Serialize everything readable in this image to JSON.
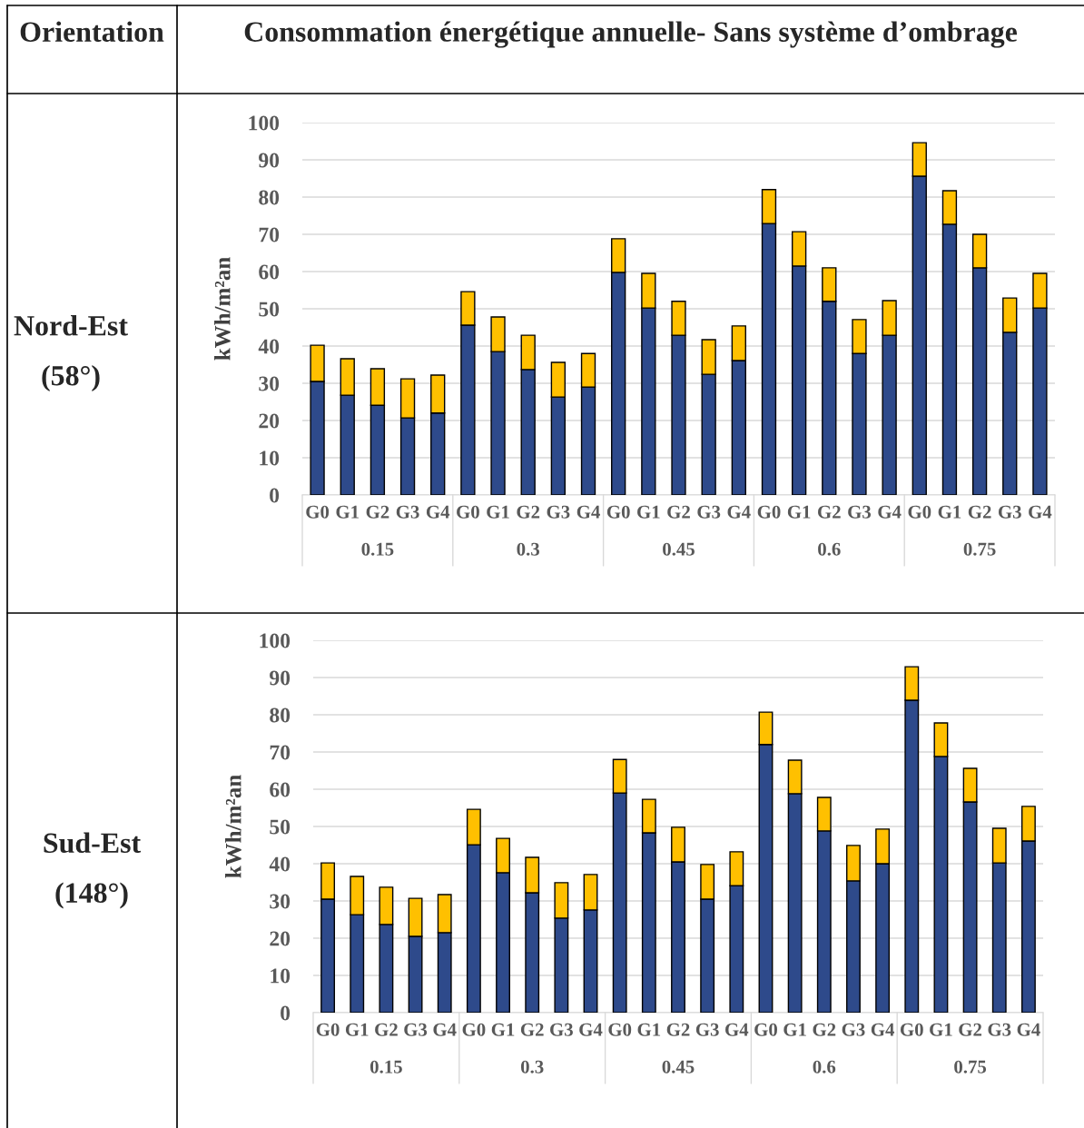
{
  "chart_data": [
    {
      "type": "bar",
      "title": "Consommation énergétique annuelle- Sans système d’ombrage",
      "ylabel": "kWh/m²an",
      "stacked": true,
      "grid": "y",
      "ylim": [
        0,
        100
      ],
      "yticks": [
        0,
        10,
        20,
        30,
        40,
        50,
        60,
        70,
        80,
        90,
        100
      ],
      "categories": [
        "G0",
        "G1",
        "G2",
        "G3",
        "G4",
        "G0",
        "G1",
        "G2",
        "G3",
        "G4",
        "G0",
        "G1",
        "G2",
        "G3",
        "G4",
        "G0",
        "G1",
        "G2",
        "G3",
        "G4",
        "G0",
        "G1",
        "G2",
        "G3",
        "G4"
      ],
      "series": [
        {
          "color": "#2e4a8b",
          "values": [
            30.5,
            26.8,
            24.1,
            20.7,
            22,
            45.6,
            38.5,
            33.7,
            26.3,
            29,
            59.8,
            50.2,
            42.9,
            32.4,
            36.1,
            72.9,
            61.5,
            52,
            38,
            42.9,
            85.6,
            72.7,
            61,
            43.7,
            50.2
          ]
        },
        {
          "color": "#ffc000",
          "values": [
            9.7,
            9.8,
            9.8,
            10.5,
            10.2,
            9,
            9.3,
            9.2,
            9.3,
            9,
            9,
            9.3,
            9.1,
            9.3,
            9.3,
            9.1,
            9.2,
            9,
            9.1,
            9.3,
            9,
            9,
            9,
            9.2,
            9.3
          ]
        }
      ],
      "annotations": [
        "Orientation",
        "Nord-Est",
        "(58°)",
        "0.15",
        "0.3",
        "0.45",
        "0.6",
        "0.75"
      ]
    },
    {
      "type": "bar",
      "ylabel": "kWh/m²an",
      "stacked": true,
      "grid": "y",
      "ylim": [
        0,
        100
      ],
      "yticks": [
        0,
        10,
        20,
        30,
        40,
        50,
        60,
        70,
        80,
        90,
        100
      ],
      "categories": [
        "G0",
        "G1",
        "G2",
        "G3",
        "G4",
        "G0",
        "G1",
        "G2",
        "G3",
        "G4",
        "G0",
        "G1",
        "G2",
        "G3",
        "G4",
        "G0",
        "G1",
        "G2",
        "G3",
        "G4",
        "G0",
        "G1",
        "G2",
        "G3",
        "G4"
      ],
      "series": [
        {
          "color": "#2e4a8b",
          "values": [
            30.5,
            26.3,
            23.7,
            20.5,
            21.5,
            45.1,
            37.6,
            32.2,
            25.4,
            27.6,
            59,
            48.3,
            40.5,
            30.5,
            34.1,
            72,
            58.8,
            48.8,
            35.4,
            40,
            83.9,
            68.8,
            56.6,
            40.2,
            46.1
          ]
        },
        {
          "color": "#ffc000",
          "values": [
            9.7,
            10.3,
            10,
            10.2,
            10.2,
            9.5,
            9.2,
            9.5,
            9.5,
            9.5,
            9,
            9,
            9.3,
            9.3,
            9.1,
            8.7,
            9,
            9,
            9.5,
            9.3,
            9,
            9,
            9,
            9.3,
            9.3
          ]
        }
      ],
      "annotations": [
        "Sud-Est",
        "(148°)",
        "0.15",
        "0.3",
        "0.45",
        "0.6",
        "0.75"
      ]
    }
  ]
}
